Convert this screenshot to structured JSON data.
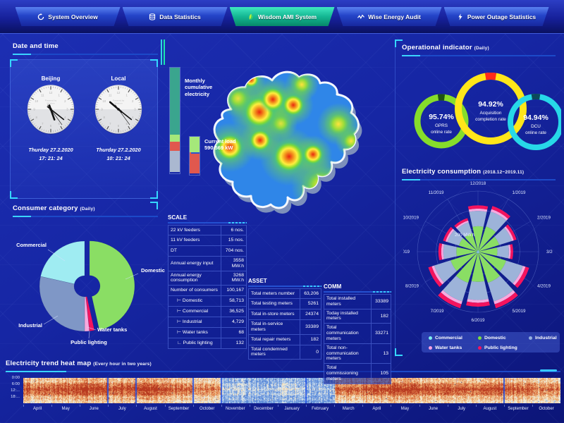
{
  "nav": {
    "tabs": [
      {
        "label": "System Overview",
        "icon": "refresh-icon",
        "active": false
      },
      {
        "label": "Data Statistics",
        "icon": "database-icon",
        "active": false
      },
      {
        "label": "Wisdom AMI System",
        "icon": "leaf-icon",
        "active": true
      },
      {
        "label": "Wise Energy Audit",
        "icon": "wave-icon",
        "active": false
      },
      {
        "label": "Power Outage Statistics",
        "icon": "bolt-icon",
        "active": false
      }
    ]
  },
  "datetime": {
    "title": "Date and time",
    "watermark_line1": "Powered by",
    "watermark_line2": "Wisdom",
    "clocks": [
      {
        "label": "Beijing",
        "date": "Thurday 27.2.2020",
        "time": "17: 21: 24"
      },
      {
        "label": "Local",
        "date": "Thurday 27.2.2020",
        "time": "10: 21: 24"
      }
    ]
  },
  "consumer_category": {
    "title": "Consumer category",
    "subtitle": "(Daily)",
    "chart_data": {
      "type": "pie",
      "unit": "percent (estimated from arc angles)",
      "slices": [
        {
          "label": "Domestic",
          "value": 46.5,
          "color": "#8ade64",
          "exploded": true
        },
        {
          "label": "Public lighting",
          "value": 1.8,
          "color": "#f5135e"
        },
        {
          "label": "Water tanks",
          "value": 1.7,
          "color": "#f7aade"
        },
        {
          "label": "Industrial",
          "value": 28.5,
          "color": "#7f97c6"
        },
        {
          "label": "Commercial",
          "value": 21.5,
          "color": "#9fecf2"
        }
      ]
    }
  },
  "center": {
    "bar1_label": "Monthly cumulative electricity",
    "bar1_segments": [
      {
        "color": "#3aa58e",
        "pct": 64
      },
      {
        "color": "#a5e87a",
        "pct": 7
      },
      {
        "color": "#e0584e",
        "pct": 9
      },
      {
        "color": "#aab8d0",
        "pct": 20
      }
    ],
    "bar2_label": "Current load",
    "bar2_value": "590.569 kW",
    "bar2_segments": [
      {
        "color": "#a5e87a",
        "pct": 42
      },
      {
        "color": "#e0584e",
        "pct": 58
      }
    ]
  },
  "scale_table": {
    "title": "SCALE",
    "rows": [
      {
        "label": "22 kV feeders",
        "value": "6 nos.",
        "indent": 0
      },
      {
        "label": "11 kV feeders",
        "value": "15 nos.",
        "indent": 0
      },
      {
        "label": "DT",
        "value": "704 nos.",
        "indent": 0
      },
      {
        "label": "Annual energy input",
        "value": "3558 MW.h",
        "indent": 0
      },
      {
        "label": "Annual energy consumption",
        "value": "3268 MW.h",
        "indent": 0
      },
      {
        "label": "Number of consumers",
        "value": "100,167",
        "indent": 0
      },
      {
        "label": "Domestic",
        "value": "58,713",
        "indent": 1
      },
      {
        "label": "Commercial",
        "value": "36,525",
        "indent": 1
      },
      {
        "label": "Industrial",
        "value": "4,729",
        "indent": 1
      },
      {
        "label": "Water tanks",
        "value": "68",
        "indent": 1
      },
      {
        "label": "Public lighting",
        "value": "132",
        "indent": 2
      }
    ]
  },
  "asset_table": {
    "title": "ASSET",
    "rows": [
      {
        "label": "Total meters number",
        "value": "63,206",
        "indent": 0
      },
      {
        "label": "Total testing meters",
        "value": "5261",
        "indent": 0
      },
      {
        "label": "Total in-store meters",
        "value": "24374",
        "indent": 0
      },
      {
        "label": "Total in-service meters",
        "value": "33389",
        "indent": 0
      },
      {
        "label": "Total repair meters",
        "value": "182",
        "indent": 0
      },
      {
        "label": "Total condemned meters",
        "value": "0",
        "indent": 0
      }
    ]
  },
  "comm_table": {
    "title": "COMM",
    "rows": [
      {
        "label": "Total installed meters",
        "value": "33389",
        "indent": 0
      },
      {
        "label": "Today installed meters",
        "value": "182",
        "indent": 0
      },
      {
        "label": "Total communication meters",
        "value": "33271",
        "indent": 0
      },
      {
        "label": "Total non-communication meters",
        "value": "13",
        "indent": 0
      },
      {
        "label": "Total commissioning meters",
        "value": "105",
        "indent": 0
      }
    ]
  },
  "operational": {
    "title": "Operational indicator",
    "subtitle": "(Daily)",
    "rings": [
      {
        "value": "95.74%",
        "line1": "GPRS",
        "line2": "online rate",
        "color": "#86dd2b",
        "notch_color": "#1d5214"
      },
      {
        "value": "94.92%",
        "line1": "Acquisition",
        "line2": "completion rate",
        "color": "#ffe619",
        "notch_color": "#ff2a1a"
      },
      {
        "value": "94.94%",
        "line1": "DCU",
        "line2": "online rate",
        "color": "#27d8e8",
        "notch_color": "#0b4a5a"
      }
    ]
  },
  "consumption": {
    "title": "Electricity consumption",
    "subtitle": "(2018.12~2019.11)",
    "radius_label": "200 MW.h",
    "chart_data": {
      "type": "polar-stacked-bar",
      "unit": "MW.h (estimated)",
      "radial_max": 450,
      "categories": [
        "12/2018",
        "1/2019",
        "2/2019",
        "3/2019",
        "4/2019",
        "5/2019",
        "6/2019",
        "7/2019",
        "8/2019",
        "9/2019",
        "10/2019",
        "11/2019"
      ],
      "totals": [
        345,
        356,
        300,
        262,
        398,
        440,
        408,
        440,
        387,
        293,
        272,
        262
      ],
      "series": [
        {
          "name": "Commercial",
          "color": "#9fecf2",
          "values": [
            10,
            11,
            9,
            8,
            12,
            13,
            12,
            13,
            12,
            9,
            8,
            8
          ]
        },
        {
          "name": "Domestic",
          "color": "#8ade64",
          "values": [
            179,
            185,
            156,
            136,
            207,
            229,
            212,
            229,
            201,
            152,
            141,
            136
          ]
        },
        {
          "name": "Industrial",
          "color": "#9db3d9",
          "values": [
            114,
            117,
            99,
            86,
            131,
            145,
            135,
            145,
            128,
            97,
            90,
            86
          ]
        },
        {
          "name": "Water tanks",
          "color": "#f7aade",
          "values": [
            17,
            18,
            15,
            13,
            20,
            22,
            20,
            22,
            19,
            15,
            14,
            13
          ]
        },
        {
          "name": "Public lighting",
          "color": "#f5135e",
          "values": [
            24,
            25,
            21,
            18,
            28,
            31,
            29,
            31,
            27,
            21,
            19,
            18
          ]
        }
      ]
    },
    "legend": [
      {
        "label": "Commercial",
        "color": "#7ef0ee"
      },
      {
        "label": "Domestic",
        "color": "#7ddd3f"
      },
      {
        "label": "Industrial",
        "color": "#93aede"
      },
      {
        "label": "Water tanks",
        "color": "#f9a0e0"
      },
      {
        "label": "Public lighting",
        "color": "#f5135e"
      }
    ]
  },
  "heatmap": {
    "title": "Electricity trend heat map",
    "subtitle": "(Every hour in two years)",
    "chart_data": {
      "type": "heatmap",
      "y_labels": [
        "0:00",
        "6:00",
        "12:...",
        "18:..."
      ],
      "x_labels": [
        "April",
        "May",
        "June",
        "July",
        "August",
        "September",
        "October",
        "November",
        "December",
        "January",
        "February",
        "March",
        "April",
        "May",
        "June",
        "July",
        "August",
        "September",
        "October"
      ]
    }
  }
}
